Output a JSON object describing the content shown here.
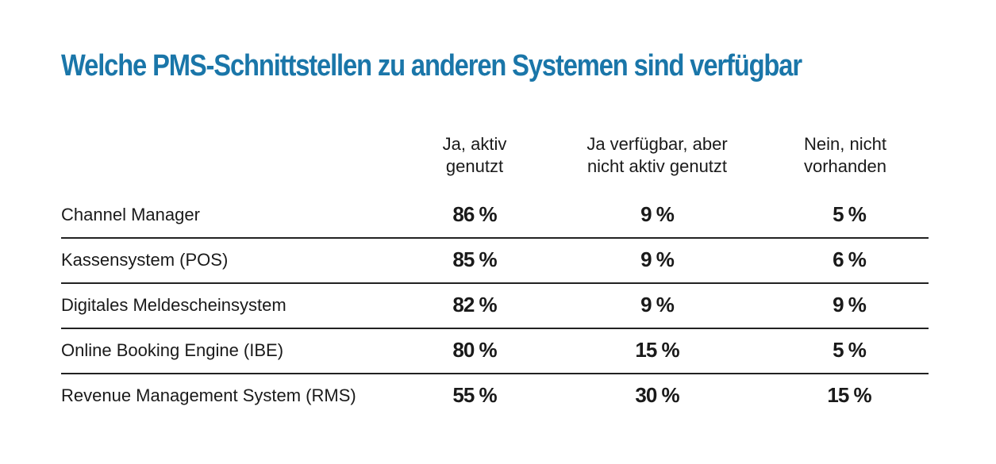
{
  "chart_data": {
    "type": "table",
    "title": "Welche PMS-Schnittstellen zu anderen Systemen sind verfügbar",
    "columns": [
      {
        "line1": "Ja, aktiv",
        "line2": "genutzt"
      },
      {
        "line1": "Ja verfügbar, aber",
        "line2": "nicht aktiv genutzt"
      },
      {
        "line1": "Nein, nicht",
        "line2": "vorhanden"
      }
    ],
    "rows": [
      {
        "label": "Channel Manager",
        "values": [
          "86 %",
          "9 %",
          "5 %"
        ]
      },
      {
        "label": "Kassensystem (POS)",
        "values": [
          "85 %",
          "9 %",
          "6 %"
        ]
      },
      {
        "label": "Digitales Meldescheinsystem",
        "values": [
          "82 %",
          "9 %",
          "9 %"
        ]
      },
      {
        "label": "Online Booking Engine (IBE)",
        "values": [
          "80 %",
          "15 %",
          "5 %"
        ]
      },
      {
        "label": "Revenue Management System (RMS)",
        "values": [
          "55 %",
          "30 %",
          "15 %"
        ]
      }
    ]
  },
  "colors": {
    "title": "#1a76a9",
    "text": "#1a1a1a",
    "divider": "#222222"
  }
}
